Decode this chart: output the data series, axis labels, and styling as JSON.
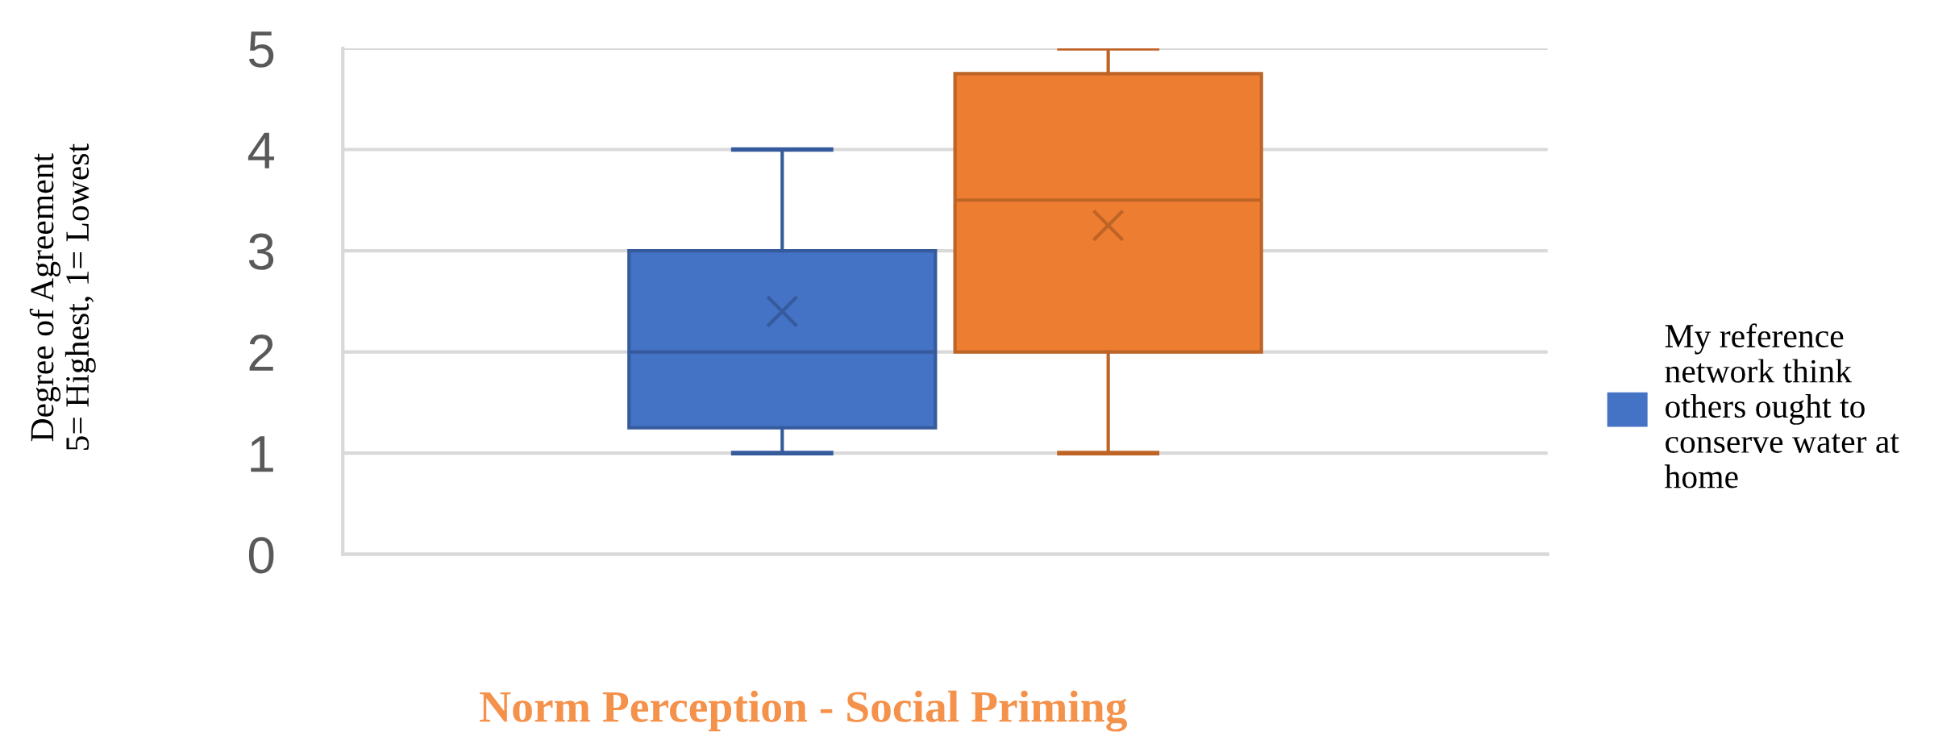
{
  "chart_data": {
    "type": "box",
    "title": "Norm Perception - Social Priming",
    "ylabel": "Degree of Agreement\n5= Highest, 1= Lowest",
    "categories": [
      null
    ],
    "series": [
      {
        "name": "My reference network think others ought to conserve water at home",
        "color": "#4472c4",
        "boxes": [
          {
            "low": 1,
            "q1": 1.25,
            "median": 2,
            "q3": 3,
            "high": 4,
            "mean": 2.4
          }
        ]
      },
      {
        "color": "#ed7d31",
        "boxes": [
          {
            "low": 1,
            "q1": 2,
            "median": 3.5,
            "q3": 4.75,
            "high": 5,
            "mean": 3.25
          }
        ]
      }
    ],
    "ylim": [
      0,
      5
    ],
    "yticks": [
      0,
      1,
      2,
      3,
      4,
      5
    ],
    "grid": "y",
    "legend": "right",
    "tick_labels": "y"
  }
}
